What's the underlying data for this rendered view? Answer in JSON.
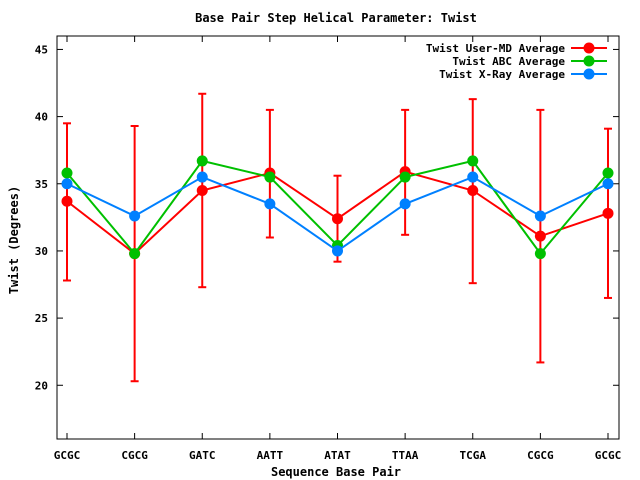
{
  "chart_data": {
    "type": "line",
    "title": "Base Pair Step Helical Parameter: Twist",
    "xlabel": "Sequence Base Pair",
    "ylabel": "Twist (Degrees)",
    "categories": [
      "GCGC",
      "CGCG",
      "GATC",
      "AATT",
      "ATAT",
      "TTAA",
      "TCGA",
      "CGCG",
      "GCGC"
    ],
    "ylim": [
      16,
      46
    ],
    "yticks": [
      "20",
      "25",
      "30",
      "35",
      "40",
      "45"
    ],
    "grid": false,
    "legend_position": "top-right",
    "series": [
      {
        "name": "Twist User-MD Average",
        "color": "#ff0000",
        "values": [
          33.7,
          29.8,
          34.5,
          35.8,
          32.4,
          35.9,
          34.5,
          31.1,
          32.8
        ],
        "error_low": [
          27.8,
          20.3,
          27.3,
          31.0,
          29.2,
          31.2,
          27.6,
          21.7,
          26.5
        ],
        "error_high": [
          39.5,
          39.3,
          41.7,
          40.5,
          35.6,
          40.5,
          41.3,
          40.5,
          39.1
        ]
      },
      {
        "name": "Twist ABC Average",
        "color": "#00c000",
        "values": [
          35.8,
          29.8,
          36.7,
          35.5,
          30.4,
          35.5,
          36.7,
          29.8,
          35.8
        ]
      },
      {
        "name": "Twist X-Ray Average",
        "color": "#0080ff",
        "values": [
          35.0,
          32.6,
          35.5,
          33.5,
          30.0,
          33.5,
          35.5,
          32.6,
          35.0
        ]
      }
    ]
  }
}
